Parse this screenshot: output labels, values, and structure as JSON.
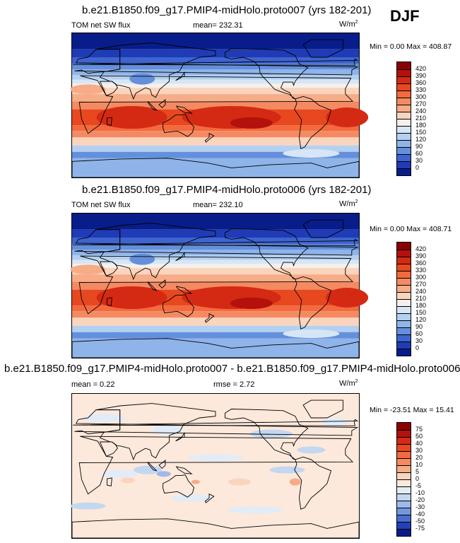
{
  "season": "DJF",
  "panels": [
    {
      "title": "b.e21.B1850.f09_g17.PMIP4-midHolo.proto007 (yrs 182-201)",
      "variable": "TOM net SW flux",
      "mean_text": "mean= 232.31",
      "units": "W/m",
      "units_exp": "2",
      "minmax": "Min =   0.00 Max = 408.87",
      "colorbar_labels": [
        "420",
        "390",
        "360",
        "330",
        "300",
        "270",
        "240",
        "210",
        "180",
        "150",
        "120",
        "90",
        "60",
        "30",
        "0"
      ]
    },
    {
      "title": "b.e21.B1850.f09_g17.PMIP4-midHolo.proto006 (yrs 182-201)",
      "variable": "TOM net SW flux",
      "mean_text": "mean= 232.10",
      "units": "W/m",
      "units_exp": "2",
      "minmax": "Min =   0.00 Max = 408.71",
      "colorbar_labels": [
        "420",
        "390",
        "360",
        "330",
        "300",
        "270",
        "240",
        "210",
        "180",
        "150",
        "120",
        "90",
        "60",
        "30",
        "0"
      ]
    },
    {
      "title": "b.e21.B1850.f09_g17.PMIP4-midHolo.proto007 - b.e21.B1850.f09_g17.PMIP4-midHolo.proto006",
      "mean_text": "mean =   0.22",
      "rmse_text": "rmse =   2.72",
      "units": "W/m",
      "units_exp": "2",
      "minmax": "Min = -23.51 Max = 15.41",
      "colorbar_labels": [
        "75",
        "50",
        "40",
        "30",
        "20",
        "10",
        "5",
        "0",
        "-5",
        "-10",
        "-20",
        "-30",
        "-40",
        "-50",
        "-75"
      ]
    }
  ],
  "colors": {
    "abs_scale": [
      "#8b0000",
      "#b4100c",
      "#d42a14",
      "#e8481f",
      "#f26a3d",
      "#f48a61",
      "#f7ac88",
      "#fbd4bd",
      "#f6f0ea",
      "#d6e6f7",
      "#b4d0f0",
      "#8fb4ea",
      "#648fdd",
      "#3f63cf",
      "#1f3cb6",
      "#081d8a"
    ],
    "diff_scale": [
      "#8b0000",
      "#b4100c",
      "#d42a14",
      "#e8481f",
      "#f26a3d",
      "#f48a61",
      "#f7ac88",
      "#fbd4bd",
      "#fde8dc",
      "#e2ecf8",
      "#c4d7f1",
      "#9dbaea",
      "#7496de",
      "#4c6dd0",
      "#2440b8",
      "#081d8a"
    ]
  }
}
